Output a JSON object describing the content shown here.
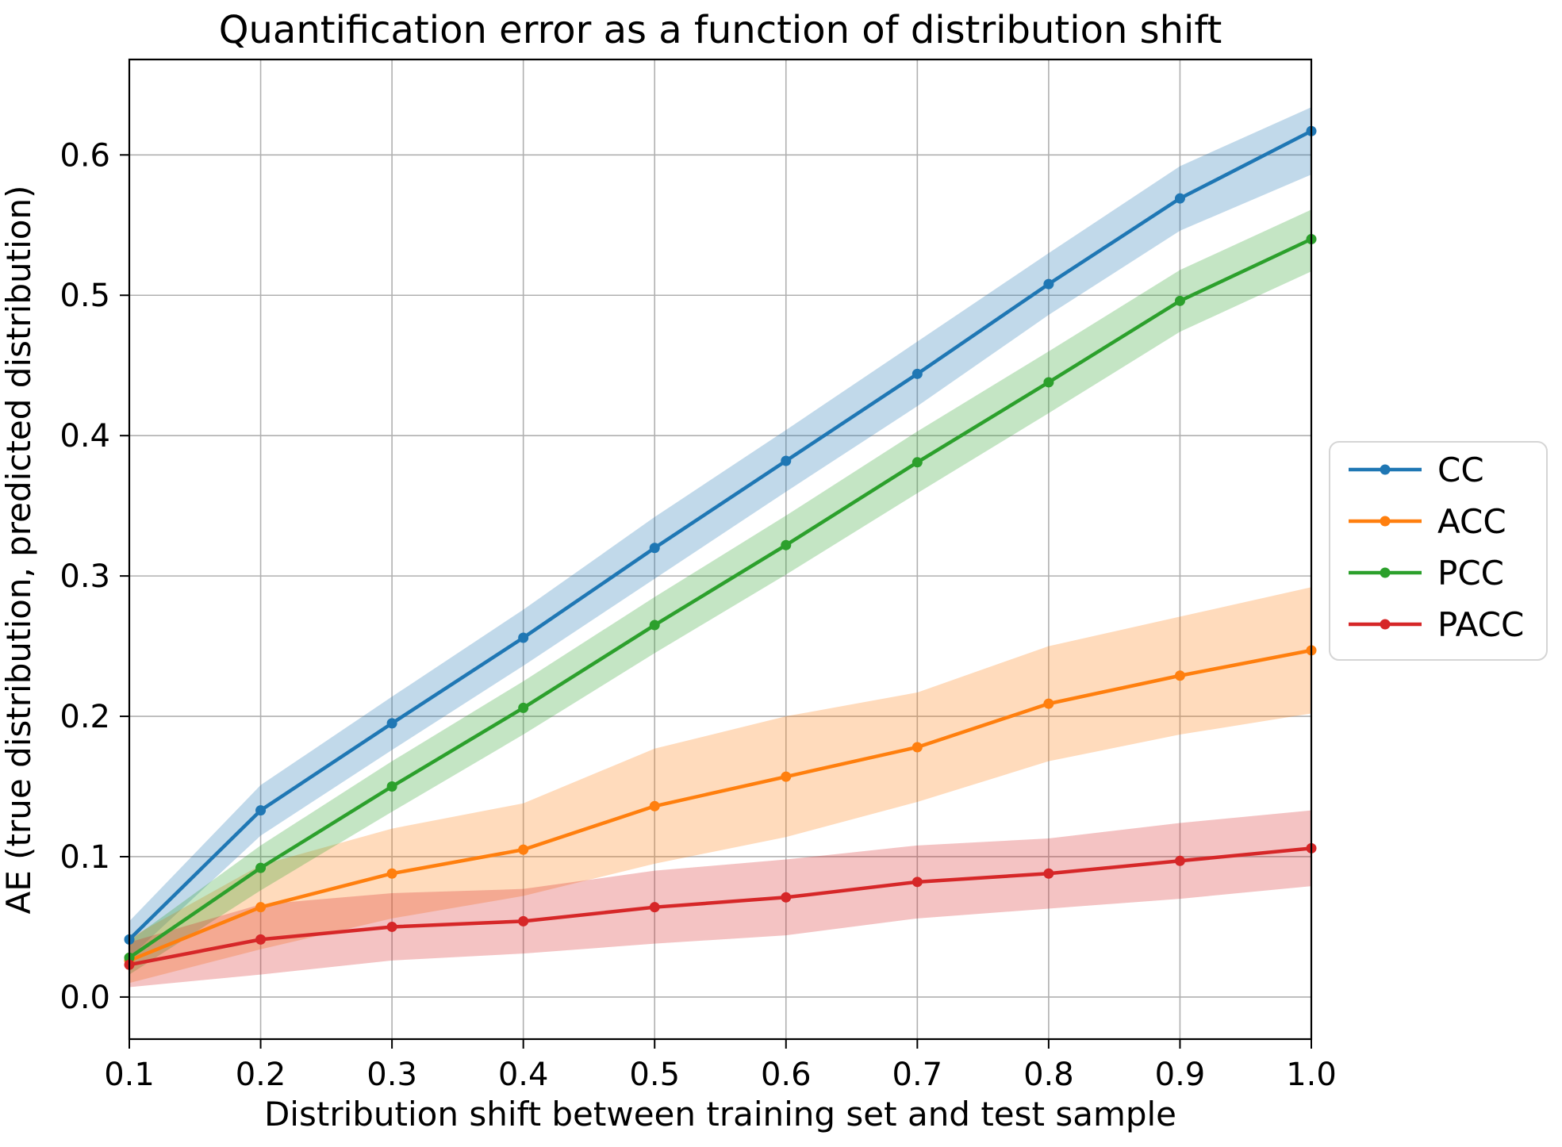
{
  "chart_data": {
    "type": "line",
    "title": "Quantification error as a function of distribution shift",
    "xlabel": "Distribution shift between training set and test sample",
    "ylabel": "AE (true distribution, predicted distribution)",
    "grid": true,
    "legend_position": "right of axes, vertically centered",
    "xlim": [
      0.1,
      1.0
    ],
    "ylim": [
      -0.03,
      0.668
    ],
    "xticks": [
      0.1,
      0.2,
      0.3,
      0.4,
      0.5,
      0.6,
      0.7,
      0.8,
      0.9,
      1.0
    ],
    "yticks": [
      0.0,
      0.1,
      0.2,
      0.3,
      0.4,
      0.5,
      0.6
    ],
    "x": [
      0.1,
      0.2,
      0.3,
      0.4,
      0.5,
      0.6,
      0.7,
      0.8,
      0.9,
      1.0
    ],
    "band_opacity": 0.28,
    "grid_color": "#b0b0b0",
    "spine_color": "#000000",
    "legend_border_color": "#d5d5d5",
    "series": [
      {
        "name": "CC",
        "color": "#1f77b4",
        "values": [
          0.041,
          0.133,
          0.195,
          0.256,
          0.32,
          0.382,
          0.444,
          0.508,
          0.569,
          0.617
        ],
        "band_lower": [
          0.028,
          0.115,
          0.176,
          0.236,
          0.298,
          0.36,
          0.421,
          0.486,
          0.546,
          0.586
        ],
        "band_upper": [
          0.054,
          0.151,
          0.214,
          0.276,
          0.342,
          0.404,
          0.467,
          0.53,
          0.592,
          0.634
        ]
      },
      {
        "name": "ACC",
        "color": "#ff7f0e",
        "values": [
          0.026,
          0.064,
          0.088,
          0.105,
          0.136,
          0.157,
          0.178,
          0.209,
          0.229,
          0.247
        ],
        "band_lower": [
          0.01,
          0.034,
          0.056,
          0.072,
          0.095,
          0.114,
          0.139,
          0.168,
          0.187,
          0.202
        ],
        "band_upper": [
          0.042,
          0.094,
          0.12,
          0.138,
          0.177,
          0.2,
          0.217,
          0.25,
          0.271,
          0.292
        ]
      },
      {
        "name": "PCC",
        "color": "#2ca02c",
        "values": [
          0.028,
          0.092,
          0.15,
          0.206,
          0.265,
          0.322,
          0.381,
          0.438,
          0.496,
          0.54
        ],
        "band_lower": [
          0.016,
          0.076,
          0.132,
          0.187,
          0.245,
          0.301,
          0.359,
          0.416,
          0.474,
          0.517
        ],
        "band_upper": [
          0.04,
          0.108,
          0.168,
          0.225,
          0.285,
          0.343,
          0.403,
          0.46,
          0.518,
          0.561
        ]
      },
      {
        "name": "PACC",
        "color": "#d62728",
        "values": [
          0.023,
          0.041,
          0.05,
          0.054,
          0.064,
          0.071,
          0.082,
          0.088,
          0.097,
          0.106
        ],
        "band_lower": [
          0.007,
          0.016,
          0.026,
          0.031,
          0.038,
          0.044,
          0.056,
          0.063,
          0.07,
          0.079
        ],
        "band_upper": [
          0.039,
          0.066,
          0.074,
          0.077,
          0.09,
          0.098,
          0.108,
          0.113,
          0.124,
          0.133
        ]
      }
    ],
    "legend_labels": [
      "CC",
      "ACC",
      "PCC",
      "PACC"
    ]
  }
}
